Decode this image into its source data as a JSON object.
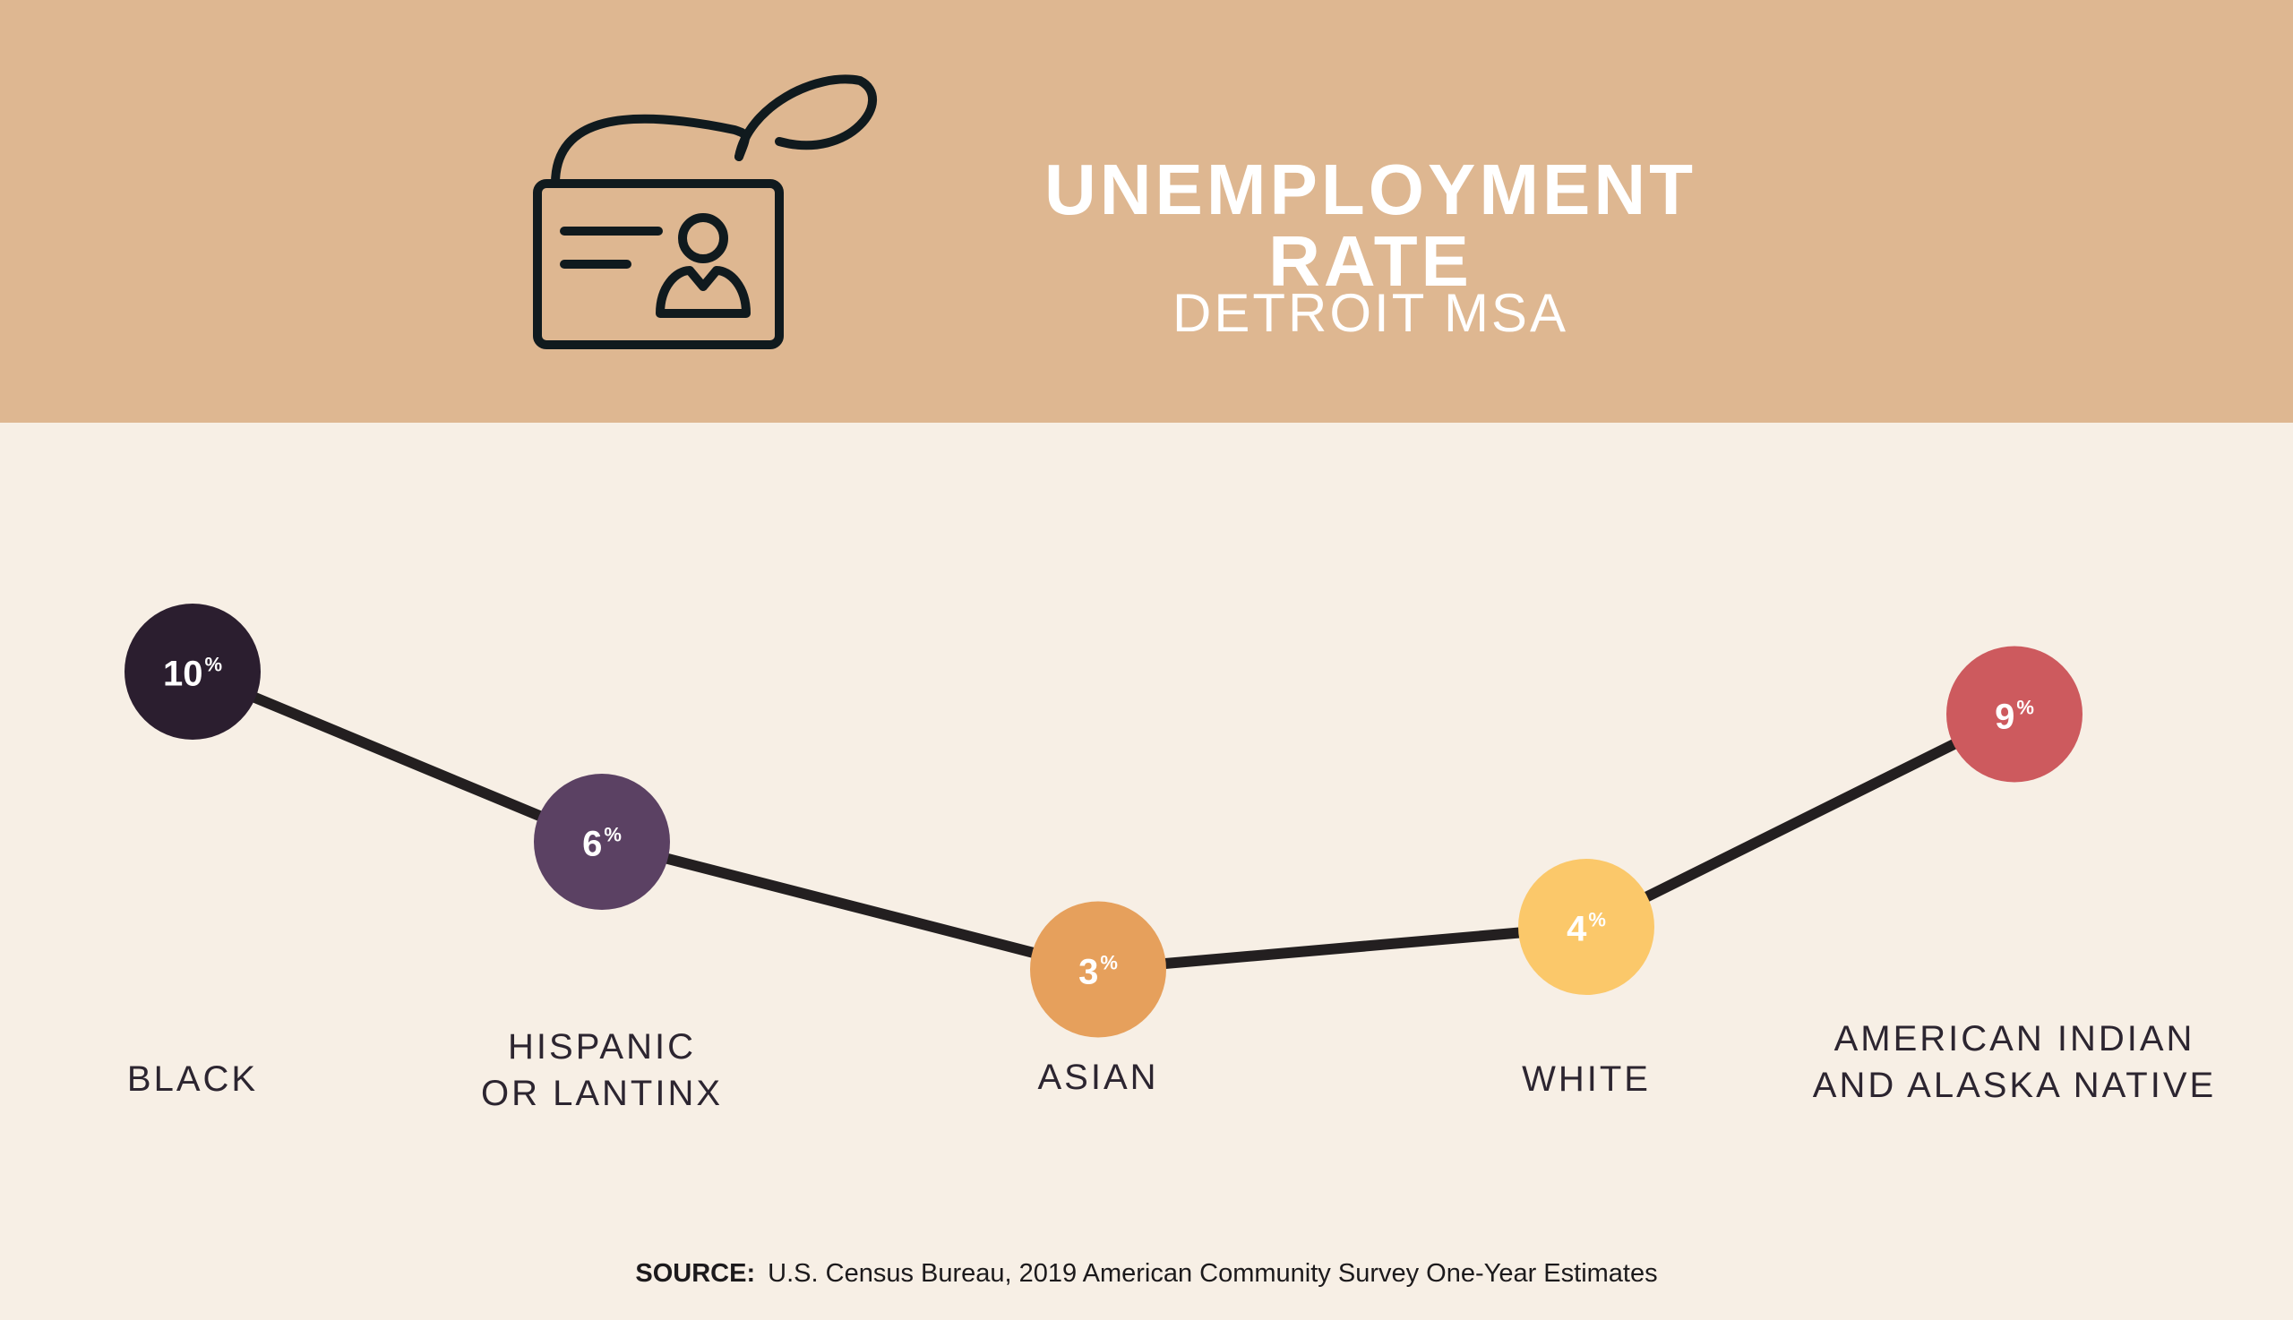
{
  "header": {
    "title": "UNEMPLOYMENT RATE",
    "subtitle": "DETROIT MSA",
    "icon": "id-badge-icon",
    "background_color": "#deb791"
  },
  "chart_data": {
    "type": "line",
    "title": "UNEMPLOYMENT RATE",
    "subtitle": "DETROIT MSA",
    "unit": "%",
    "categories": [
      "BLACK",
      "HISPANIC OR LANTINX",
      "ASIAN",
      "WHITE",
      "AMERICAN INDIAN AND ALASKA NATIVE"
    ],
    "category_lines": [
      [
        "BLACK"
      ],
      [
        "HISPANIC",
        "OR LANTINX"
      ],
      [
        "ASIAN"
      ],
      [
        "WHITE"
      ],
      [
        "AMERICAN INDIAN",
        "AND ALASKA NATIVE"
      ]
    ],
    "values": [
      10,
      6,
      3,
      4,
      9
    ],
    "point_colors": [
      "#2b1e2f",
      "#5b4163",
      "#e6a05c",
      "#fbc86a",
      "#cd5a5e"
    ],
    "line_color": "#231f20",
    "grid": false,
    "legend": "none"
  },
  "source": {
    "label": "SOURCE:",
    "text": "U.S. Census Bureau, 2019 American Community Survey One-Year Estimates"
  }
}
